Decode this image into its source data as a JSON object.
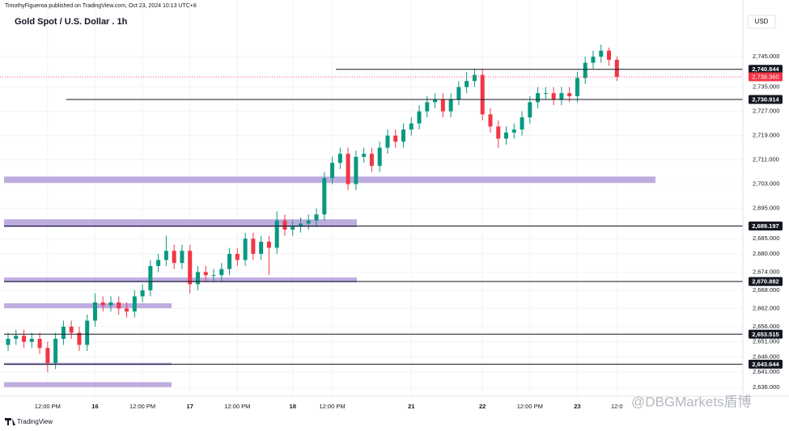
{
  "header": {
    "publisher": "TimothyFigueroa published on TradingView.com, Oct 23, 2024 10:13 UTC+8",
    "watermark": "@DBGMarkets盾博",
    "footer": "TradingView"
  },
  "chart_data": {
    "type": "candlestick",
    "title": "Gold Spot / U.S. Dollar . 1h",
    "currency": "USD",
    "up_color": "#089981",
    "down_color": "#f23645",
    "zone_color": "#b39ddb",
    "categories": [
      null,
      null,
      null,
      null,
      null,
      "12:00 PM",
      null,
      null,
      null,
      null,
      null,
      "16",
      null,
      null,
      null,
      null,
      null,
      "12:00 PM",
      null,
      null,
      null,
      null,
      null,
      "17",
      null,
      null,
      null,
      null,
      null,
      "12:00 PM",
      null,
      null,
      null,
      null,
      null,
      null,
      "18",
      null,
      null,
      null,
      null,
      "12:00 PM",
      null,
      null,
      null,
      null,
      null,
      null,
      null,
      null,
      null,
      "21",
      null,
      null,
      null,
      null,
      null,
      null,
      null,
      null,
      "22",
      null,
      null,
      null,
      null,
      null,
      "12:00 PM",
      null,
      null,
      null,
      null,
      null,
      "23",
      null,
      null,
      null,
      null,
      "12:0"
    ],
    "open": [
      2650,
      2652,
      2653,
      2651,
      2652,
      2649,
      2644,
      2652,
      2656,
      2654,
      2650,
      2658,
      2664,
      2663,
      2664,
      2662,
      2661,
      2666,
      2668,
      2676,
      2678,
      2681,
      2677,
      2681,
      2670,
      2674,
      2673,
      2673,
      2675,
      2680,
      2678,
      2685,
      2680,
      2684,
      2682,
      2691,
      2688,
      2689,
      2690,
      2691,
      2693,
      2705,
      2710,
      2713,
      2703,
      2712,
      2713,
      2709,
      2715,
      2719,
      2717,
      2721,
      2723,
      2727,
      2730,
      2731,
      2727,
      2731,
      2735,
      2737,
      2739,
      2726,
      2722,
      2718,
      2720,
      2721,
      2725,
      2730,
      2733,
      2733,
      2731,
      2733,
      2732,
      2738,
      2743,
      2745,
      2747,
      2744
    ],
    "high": [
      2654,
      2655,
      2655,
      2654,
      2654,
      2651,
      2654,
      2658,
      2658,
      2656,
      2660,
      2667,
      2666,
      2666,
      2666,
      2664,
      2668,
      2670,
      2678,
      2680,
      2686,
      2683,
      2683,
      2683,
      2676,
      2676,
      2675,
      2677,
      2682,
      2682,
      2687,
      2687,
      2686,
      2686,
      2694,
      2693,
      2691,
      2692,
      2693,
      2695,
      2707,
      2712,
      2715,
      2715,
      2714,
      2715,
      2715,
      2717,
      2721,
      2721,
      2723,
      2725,
      2729,
      2732,
      2733,
      2733,
      2733,
      2737,
      2740,
      2741,
      2741,
      2728,
      2724,
      2722,
      2723,
      2727,
      2732,
      2735,
      2735,
      2735,
      2735,
      2735,
      2740,
      2745,
      2747,
      2749,
      2748,
      2745
    ],
    "low": [
      2648,
      2650,
      2649,
      2649,
      2647,
      2641,
      2642,
      2650,
      2652,
      2648,
      2648,
      2656,
      2661,
      2661,
      2660,
      2659,
      2659,
      2664,
      2666,
      2674,
      2676,
      2675,
      2675,
      2667,
      2668,
      2671,
      2671,
      2671,
      2673,
      2676,
      2676,
      2678,
      2678,
      2673,
      2680,
      2686,
      2686,
      2687,
      2688,
      2689,
      2691,
      2703,
      2708,
      2701,
      2701,
      2710,
      2707,
      2707,
      2713,
      2715,
      2715,
      2719,
      2721,
      2725,
      2728,
      2725,
      2725,
      2729,
      2733,
      2735,
      2724,
      2720,
      2715,
      2716,
      2718,
      2719,
      2723,
      2728,
      2731,
      2729,
      2729,
      2730,
      2730,
      2736,
      2741,
      2743,
      2742,
      2737
    ],
    "close": [
      2652,
      2653,
      2651,
      2652,
      2649,
      2644,
      2652,
      2656,
      2654,
      2650,
      2658,
      2664,
      2663,
      2664,
      2662,
      2661,
      2666,
      2668,
      2676,
      2678,
      2681,
      2677,
      2681,
      2670,
      2674,
      2673,
      2673,
      2675,
      2680,
      2678,
      2685,
      2680,
      2684,
      2682,
      2691,
      2688,
      2689,
      2690,
      2691,
      2693,
      2705,
      2710,
      2713,
      2703,
      2712,
      2713,
      2709,
      2715,
      2719,
      2717,
      2721,
      2723,
      2727,
      2730,
      2731,
      2727,
      2731,
      2735,
      2737,
      2739,
      2726,
      2722,
      2718,
      2720,
      2721,
      2725,
      2730,
      2733,
      2733,
      2731,
      2733,
      2732,
      2738,
      2743,
      2745,
      2747,
      2744,
      2738.36
    ],
    "ylim": [
      2633.6,
      2758.9
    ],
    "yticks": [
      {
        "value": 2745,
        "label": "2,745.000"
      },
      {
        "value": 2735,
        "label": "2,735.000"
      },
      {
        "value": 2727,
        "label": "2,727.000"
      },
      {
        "value": 2719,
        "label": "2,719.000"
      },
      {
        "value": 2711,
        "label": "2,711.000"
      },
      {
        "value": 2703,
        "label": "2,703.000"
      },
      {
        "value": 2695,
        "label": "2,695.000"
      },
      {
        "value": 2685,
        "label": "2,685.000"
      },
      {
        "value": 2680,
        "label": "2,680.000"
      },
      {
        "value": 2674,
        "label": "2,674.000"
      },
      {
        "value": 2668,
        "label": "2,668.000"
      },
      {
        "value": 2662,
        "label": "2,662.000"
      },
      {
        "value": 2656,
        "label": "2,656.000"
      },
      {
        "value": 2651,
        "label": "2,651.000"
      },
      {
        "value": 2646,
        "label": "2,646.000"
      },
      {
        "value": 2641,
        "label": "2,641.000"
      },
      {
        "value": 2636,
        "label": "2,636.000"
      }
    ],
    "levels": [
      {
        "value": 2740.844,
        "label": "2,740.844"
      },
      {
        "value": 2730.914,
        "label": "2,730.914"
      },
      {
        "value": 2689.197,
        "label": "2,689.197"
      },
      {
        "value": 2670.882,
        "label": "2,670.882"
      },
      {
        "value": 2653.515,
        "label": "2,653.515"
      },
      {
        "value": 2643.644,
        "label": "2,643.644"
      }
    ],
    "last_price": {
      "value": 2738.36,
      "label": "2,738.360"
    },
    "zones": [
      {
        "top": 2705.5,
        "bottom": 2703.4
      },
      {
        "top": 2691.4,
        "bottom": 2688.8
      },
      {
        "top": 2672.2,
        "bottom": 2670.6
      },
      {
        "top": 2663.7,
        "bottom": 2662.1
      },
      {
        "top": 2644.1,
        "bottom": 2643.3
      },
      {
        "top": 2637.7,
        "bottom": 2636.1
      }
    ]
  }
}
